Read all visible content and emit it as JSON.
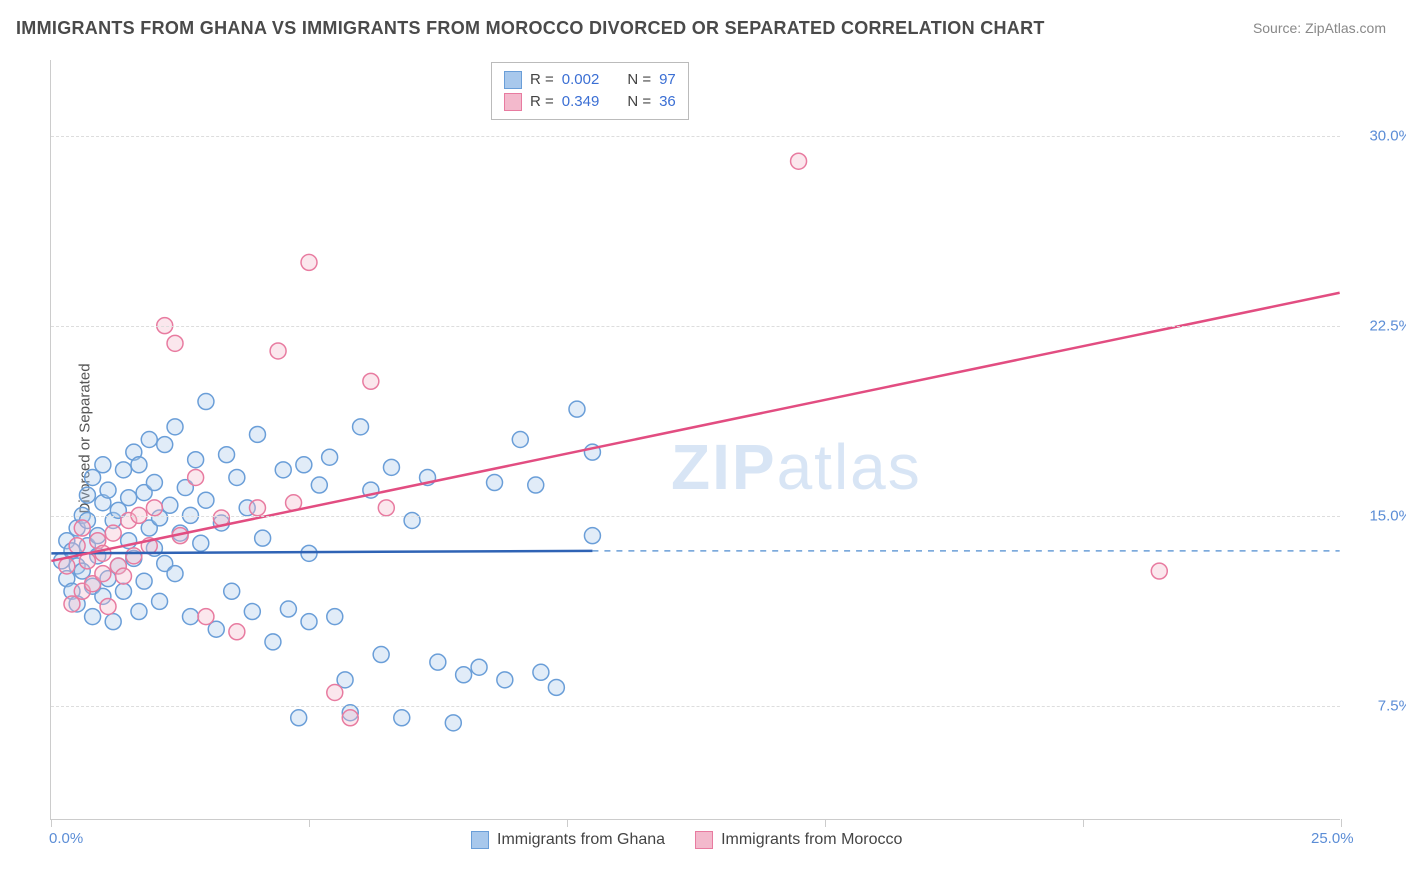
{
  "title": "IMMIGRANTS FROM GHANA VS IMMIGRANTS FROM MOROCCO DIVORCED OR SEPARATED CORRELATION CHART",
  "source": "Source: ZipAtlas.com",
  "ylabel": "Divorced or Separated",
  "watermark_a": "ZIP",
  "watermark_b": "atlas",
  "chart": {
    "type": "scatter",
    "background_color": "#ffffff",
    "grid_color": "#dddddd",
    "border_color": "#cccccc",
    "xlim": [
      0,
      25
    ],
    "ylim": [
      3,
      33
    ],
    "yticks": [
      7.5,
      15.0,
      22.5,
      30.0
    ],
    "ytick_labels": [
      "7.5%",
      "15.0%",
      "22.5%",
      "30.0%"
    ],
    "ytick_color": "#5b8dd6",
    "ytick_fontsize": 15,
    "xtick_positions": [
      0,
      5,
      10,
      15,
      20,
      25
    ],
    "xtick_labels_shown": {
      "0": "0.0%",
      "25": "25.0%"
    },
    "label_fontsize": 15,
    "label_color": "#555555",
    "title_fontsize": 18,
    "title_color": "#4a4a4a",
    "marker_radius": 8,
    "marker_stroke_width": 1.5,
    "fill_opacity": 0.35,
    "series": [
      {
        "name": "Immigrants from Ghana",
        "color_stroke": "#6a9ed8",
        "color_fill": "#a8c8ec",
        "R": "0.002",
        "N": "97",
        "trend": {
          "x1": 0,
          "y1": 13.5,
          "x2": 10.5,
          "y2": 13.6,
          "stroke": "#2f63b5",
          "stroke_width": 2.5,
          "extend_dashed_to_x": 25,
          "dash_color": "#6a9ed8"
        },
        "points": [
          [
            0.2,
            13.2
          ],
          [
            0.3,
            12.5
          ],
          [
            0.3,
            14.0
          ],
          [
            0.4,
            13.6
          ],
          [
            0.4,
            12.0
          ],
          [
            0.5,
            14.5
          ],
          [
            0.5,
            11.5
          ],
          [
            0.5,
            13.0
          ],
          [
            0.6,
            15.0
          ],
          [
            0.6,
            12.8
          ],
          [
            0.7,
            13.8
          ],
          [
            0.7,
            14.8
          ],
          [
            0.7,
            15.8
          ],
          [
            0.8,
            12.2
          ],
          [
            0.8,
            16.5
          ],
          [
            0.8,
            11.0
          ],
          [
            0.9,
            14.2
          ],
          [
            0.9,
            13.4
          ],
          [
            1.0,
            15.5
          ],
          [
            1.0,
            11.8
          ],
          [
            1.0,
            17.0
          ],
          [
            1.1,
            16.0
          ],
          [
            1.1,
            12.5
          ],
          [
            1.2,
            14.8
          ],
          [
            1.2,
            10.8
          ],
          [
            1.3,
            15.2
          ],
          [
            1.3,
            13.0
          ],
          [
            1.4,
            16.8
          ],
          [
            1.4,
            12.0
          ],
          [
            1.5,
            15.7
          ],
          [
            1.5,
            14.0
          ],
          [
            1.6,
            17.5
          ],
          [
            1.6,
            13.3
          ],
          [
            1.7,
            11.2
          ],
          [
            1.7,
            17.0
          ],
          [
            1.8,
            12.4
          ],
          [
            1.8,
            15.9
          ],
          [
            1.9,
            14.5
          ],
          [
            1.9,
            18.0
          ],
          [
            2.0,
            13.7
          ],
          [
            2.0,
            16.3
          ],
          [
            2.1,
            14.9
          ],
          [
            2.1,
            11.6
          ],
          [
            2.2,
            17.8
          ],
          [
            2.2,
            13.1
          ],
          [
            2.3,
            15.4
          ],
          [
            2.4,
            12.7
          ],
          [
            2.4,
            18.5
          ],
          [
            2.5,
            14.3
          ],
          [
            2.6,
            16.1
          ],
          [
            2.7,
            15.0
          ],
          [
            2.7,
            11.0
          ],
          [
            2.8,
            17.2
          ],
          [
            2.9,
            13.9
          ],
          [
            3.0,
            19.5
          ],
          [
            3.0,
            15.6
          ],
          [
            3.2,
            10.5
          ],
          [
            3.3,
            14.7
          ],
          [
            3.4,
            17.4
          ],
          [
            3.5,
            12.0
          ],
          [
            3.6,
            16.5
          ],
          [
            3.8,
            15.3
          ],
          [
            3.9,
            11.2
          ],
          [
            4.0,
            18.2
          ],
          [
            4.1,
            14.1
          ],
          [
            4.3,
            10.0
          ],
          [
            4.5,
            16.8
          ],
          [
            4.6,
            11.3
          ],
          [
            4.8,
            7.0
          ],
          [
            4.9,
            17.0
          ],
          [
            5.0,
            13.5
          ],
          [
            5.0,
            10.8
          ],
          [
            5.2,
            16.2
          ],
          [
            5.4,
            17.3
          ],
          [
            5.5,
            11.0
          ],
          [
            5.7,
            8.5
          ],
          [
            5.8,
            7.2
          ],
          [
            6.0,
            18.5
          ],
          [
            6.2,
            16.0
          ],
          [
            6.4,
            9.5
          ],
          [
            6.6,
            16.9
          ],
          [
            6.8,
            7.0
          ],
          [
            7.0,
            14.8
          ],
          [
            7.3,
            16.5
          ],
          [
            7.5,
            9.2
          ],
          [
            7.8,
            6.8
          ],
          [
            8.0,
            8.7
          ],
          [
            8.3,
            9.0
          ],
          [
            8.6,
            16.3
          ],
          [
            8.8,
            8.5
          ],
          [
            9.1,
            18.0
          ],
          [
            9.4,
            16.2
          ],
          [
            9.5,
            8.8
          ],
          [
            9.8,
            8.2
          ],
          [
            10.2,
            19.2
          ],
          [
            10.5,
            17.5
          ],
          [
            10.5,
            14.2
          ]
        ]
      },
      {
        "name": "Immigrants from Morocco",
        "color_stroke": "#e87ba0",
        "color_fill": "#f3b9cc",
        "R": "0.349",
        "N": "36",
        "trend": {
          "x1": 0,
          "y1": 13.2,
          "x2": 25,
          "y2": 23.8,
          "stroke": "#e24d81",
          "stroke_width": 2.5
        },
        "points": [
          [
            0.3,
            13.0
          ],
          [
            0.4,
            11.5
          ],
          [
            0.5,
            13.8
          ],
          [
            0.6,
            12.0
          ],
          [
            0.6,
            14.5
          ],
          [
            0.7,
            13.2
          ],
          [
            0.8,
            12.3
          ],
          [
            0.9,
            14.0
          ],
          [
            1.0,
            13.5
          ],
          [
            1.0,
            12.7
          ],
          [
            1.1,
            11.4
          ],
          [
            1.2,
            14.3
          ],
          [
            1.3,
            13.0
          ],
          [
            1.4,
            12.6
          ],
          [
            1.5,
            14.8
          ],
          [
            1.6,
            13.4
          ],
          [
            1.7,
            15.0
          ],
          [
            1.9,
            13.8
          ],
          [
            2.0,
            15.3
          ],
          [
            2.2,
            22.5
          ],
          [
            2.4,
            21.8
          ],
          [
            2.5,
            14.2
          ],
          [
            2.8,
            16.5
          ],
          [
            3.0,
            11.0
          ],
          [
            3.3,
            14.9
          ],
          [
            3.6,
            10.4
          ],
          [
            4.0,
            15.3
          ],
          [
            4.4,
            21.5
          ],
          [
            4.7,
            15.5
          ],
          [
            5.0,
            25.0
          ],
          [
            5.5,
            8.0
          ],
          [
            5.8,
            7.0
          ],
          [
            6.2,
            20.3
          ],
          [
            6.5,
            15.3
          ],
          [
            14.5,
            29.0
          ],
          [
            21.5,
            12.8
          ]
        ]
      }
    ]
  },
  "legend_top": {
    "R_label": "R =",
    "N_label": "N ="
  },
  "legend_bottom": {
    "series1": "Immigrants from Ghana",
    "series2": "Immigrants from Morocco"
  }
}
